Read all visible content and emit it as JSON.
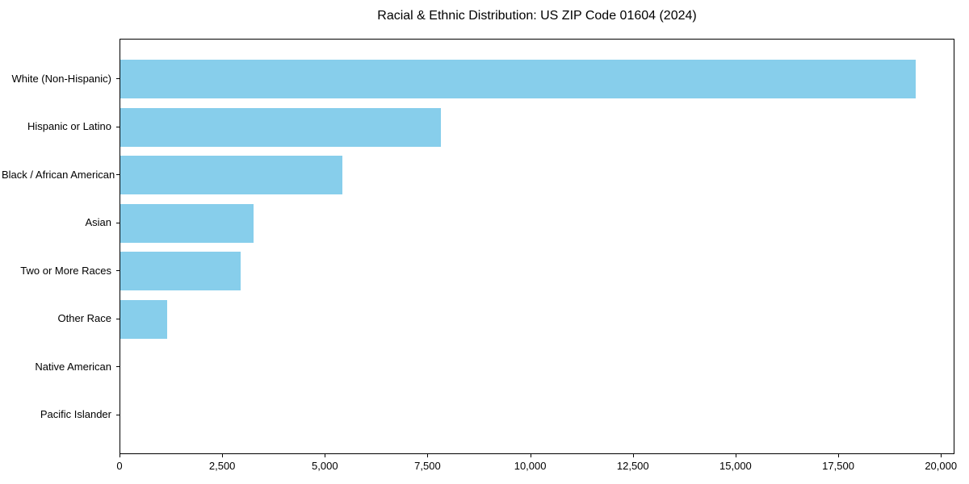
{
  "chart_data": {
    "type": "bar",
    "orientation": "horizontal",
    "title": "Racial & Ethnic Distribution: US ZIP Code 01604 (2024)",
    "categories": [
      "White (Non-Hispanic)",
      "Hispanic or Latino",
      "Black / African American",
      "Asian",
      "Two or More Races",
      "Other Race",
      "Native American",
      "Pacific Islander"
    ],
    "values": [
      19360,
      7810,
      5400,
      3250,
      2920,
      1150,
      0,
      0
    ],
    "xlabel": "",
    "ylabel": "",
    "xlim": [
      0,
      20330
    ],
    "xticks": [
      0,
      2500,
      5000,
      7500,
      10000,
      12500,
      15000,
      17500,
      20000
    ],
    "xtick_labels": [
      "0",
      "2,500",
      "5,000",
      "7,500",
      "10,000",
      "12,500",
      "15,000",
      "17,500",
      "20,000"
    ],
    "bar_color": "#87CEEB",
    "background_color": "#ffffff",
    "spine_color": "#000000",
    "grid": false,
    "legend": null
  }
}
